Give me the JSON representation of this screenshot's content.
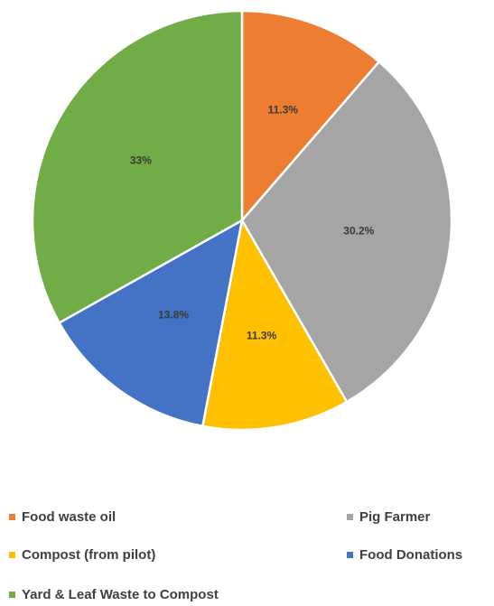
{
  "chart_data": {
    "type": "pie",
    "slices": [
      {
        "label": "Food waste oil",
        "value": 11.3,
        "value_label": "11.3%",
        "color": "#ED7D31"
      },
      {
        "label": "Pig Farmer",
        "value": 30.2,
        "value_label": "30.2%",
        "color": "#A5A5A5"
      },
      {
        "label": "Compost (from pilot)",
        "value": 11.3,
        "value_label": "11.3%",
        "color": "#FFC000"
      },
      {
        "label": "Food Donations",
        "value": 13.8,
        "value_label": "13.8%",
        "color": "#4472C4"
      },
      {
        "label": "Yard & Leaf Waste to Compost",
        "value": 33,
        "value_label": "33%",
        "color": "#70AD47"
      }
    ],
    "legend": {
      "placement": "bottom",
      "entries": [
        "Food waste oil",
        "Pig Farmer",
        "Compost (from pilot)",
        "Food Donations",
        "Yard & Leaf Waste to Compost"
      ]
    }
  }
}
